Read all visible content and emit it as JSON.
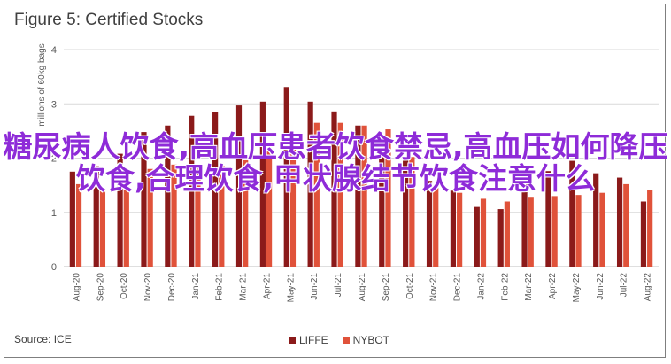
{
  "title": "Figure 5: Certified Stocks",
  "source": "Source: ICE",
  "overlay_text": "糖尿病人饮食,高血压患者饮食禁忌,高血压如何降压饮食,合理饮食,甲状腺结节饮食注意什么",
  "colors": {
    "LIFFE": "#8b1a1a",
    "NYBOT": "#e0523a"
  },
  "chart_data": {
    "type": "bar",
    "title": "Figure 5: Certified Stocks",
    "ylabel": "millions of 60kg bags",
    "xlabel": "",
    "ylim": [
      0,
      4
    ],
    "yticks": [
      0,
      1,
      2,
      3,
      4
    ],
    "grid": true,
    "legend": "bottom-center",
    "categories": [
      "Aug-20",
      "Sep-20",
      "Oct-20",
      "Nov-20",
      "Dec-20",
      "Jan-21",
      "Feb-21",
      "Mar-21",
      "Apr-21",
      "May-21",
      "Jun-21",
      "Jul-21",
      "Aug-21",
      "Sep-21",
      "Oct-21",
      "Nov-21",
      "Dec-21",
      "Jan-22",
      "Feb-22",
      "Mar-22",
      "Apr-22",
      "May-22",
      "Jun-22",
      "Jul-22",
      "Aug-22"
    ],
    "series": [
      {
        "name": "LIFFE",
        "values": [
          1.75,
          1.85,
          2.08,
          2.48,
          2.6,
          2.78,
          2.85,
          2.97,
          3.04,
          3.31,
          3.04,
          2.86,
          2.6,
          2.18,
          1.96,
          1.58,
          1.4,
          1.1,
          1.06,
          1.52,
          1.76,
          1.95,
          1.72,
          1.64,
          1.2
        ]
      },
      {
        "name": "NYBOT",
        "values": [
          1.52,
          1.44,
          1.55,
          1.8,
          1.88,
          1.82,
          1.86,
          1.96,
          2.12,
          2.42,
          2.65,
          2.65,
          2.6,
          2.53,
          2.02,
          1.45,
          1.36,
          1.25,
          1.2,
          1.27,
          1.3,
          1.32,
          1.36,
          1.52,
          1.42
        ]
      }
    ]
  }
}
